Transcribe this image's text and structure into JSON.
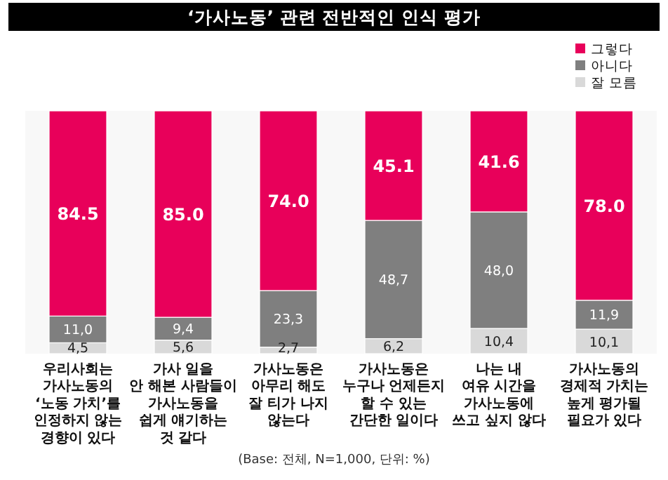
{
  "chart_data": {
    "type": "bar",
    "stacked": true,
    "title": "‘가사노동’ 관련 전반적인 인식 평가",
    "categories": [
      "우리사회는\n가사노동의\n‘노동 가치’를\n인정하지 않는\n경향이 있다",
      "가사 일을\n안 해본 사람들이\n가사노동을\n쉽게 얘기하는\n것 같다",
      "가사노동은\n아무리 해도\n잘 티가 나지\n않는다",
      "가사노동은\n누구나 언제든지\n할 수 있는\n간단한 일이다",
      "나는 내\n여유 시간을\n가사노동에\n쓰고 싶지 않다",
      "가사노동의\n경제적 가치는\n높게 평가될\n필요가 있다"
    ],
    "series": [
      {
        "name": "잘 모름",
        "color": "#d9d9d9",
        "values": [
          4.5,
          5.6,
          2.7,
          6.2,
          10.4,
          10.1
        ],
        "value_labels": [
          "4,5",
          "5,6",
          "2,7",
          "6,2",
          "10,4",
          "10,1"
        ]
      },
      {
        "name": "아니다",
        "color": "#7f7f7f",
        "values": [
          11.0,
          9.4,
          23.3,
          48.7,
          48.0,
          11.9
        ],
        "value_labels": [
          "11,0",
          "9,4",
          "23,3",
          "48,7",
          "48,0",
          "11,9"
        ]
      },
      {
        "name": "그렇다",
        "color": "#e8005a",
        "values": [
          84.5,
          85.0,
          74.0,
          45.1,
          41.6,
          78.0
        ],
        "value_labels": [
          "84.5",
          "85.0",
          "74.0",
          "45.1",
          "41.6",
          "78.0"
        ]
      }
    ],
    "legend": "top right",
    "annotations": [
      "(Base: 전체, N=1,000, 단위: %)"
    ]
  }
}
